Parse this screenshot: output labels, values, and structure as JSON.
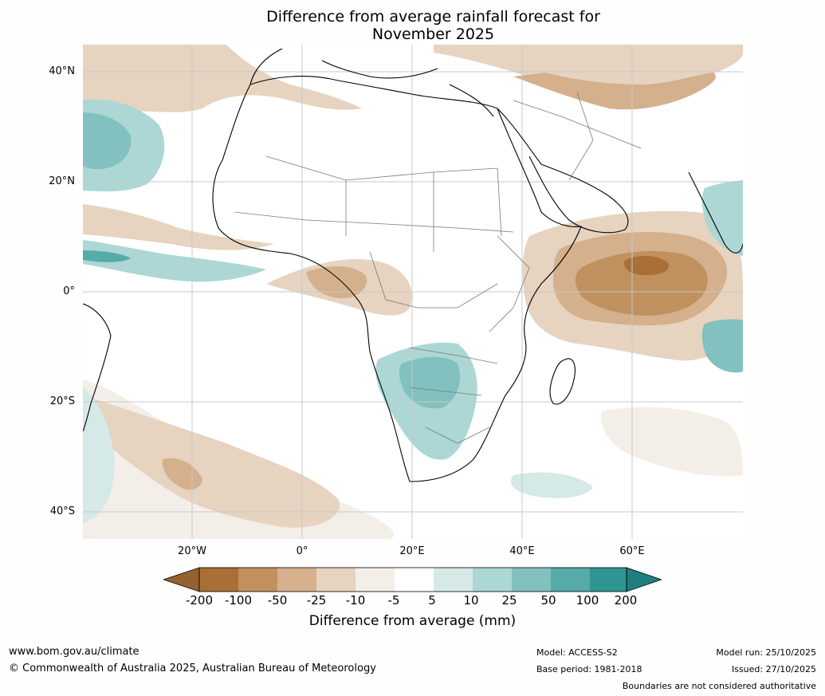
{
  "title": {
    "line1": "Difference from average rainfall forecast for",
    "line2": "November 2025"
  },
  "map": {
    "lat_labels": [
      "40°N",
      "20°N",
      "0°",
      "20°S",
      "40°S"
    ],
    "lon_labels": [
      "20°W",
      "0°",
      "20°E",
      "40°E",
      "60°E"
    ]
  },
  "colorbar": {
    "tick_labels": [
      "-200",
      "-100",
      "-50",
      "-25",
      "-10",
      "-5",
      "5",
      "10",
      "25",
      "50",
      "100",
      "200"
    ],
    "colors": [
      "#a86f36",
      "#c0915f",
      "#d4b08c",
      "#e6d3c0",
      "#f3eee7",
      "#ffffff",
      "#d5e9e7",
      "#acd7d4",
      "#82c1bf",
      "#56aaa8",
      "#2e9592"
    ],
    "under_color": "#94612f",
    "over_color": "#1f7f7d",
    "label": "Difference from average (mm)"
  },
  "footer": {
    "website": "www.bom.gov.au/climate",
    "copyright": "© Commonwealth of Australia 2025, Australian Bureau of Meteorology",
    "model": "Model: ACCESS-S2",
    "base_period": "Base period: 1981-2018",
    "model_run": "Model run: 25/10/2025",
    "issued": "Issued: 27/10/2025",
    "disclaimer": "Boundaries are not considered authoritative"
  }
}
